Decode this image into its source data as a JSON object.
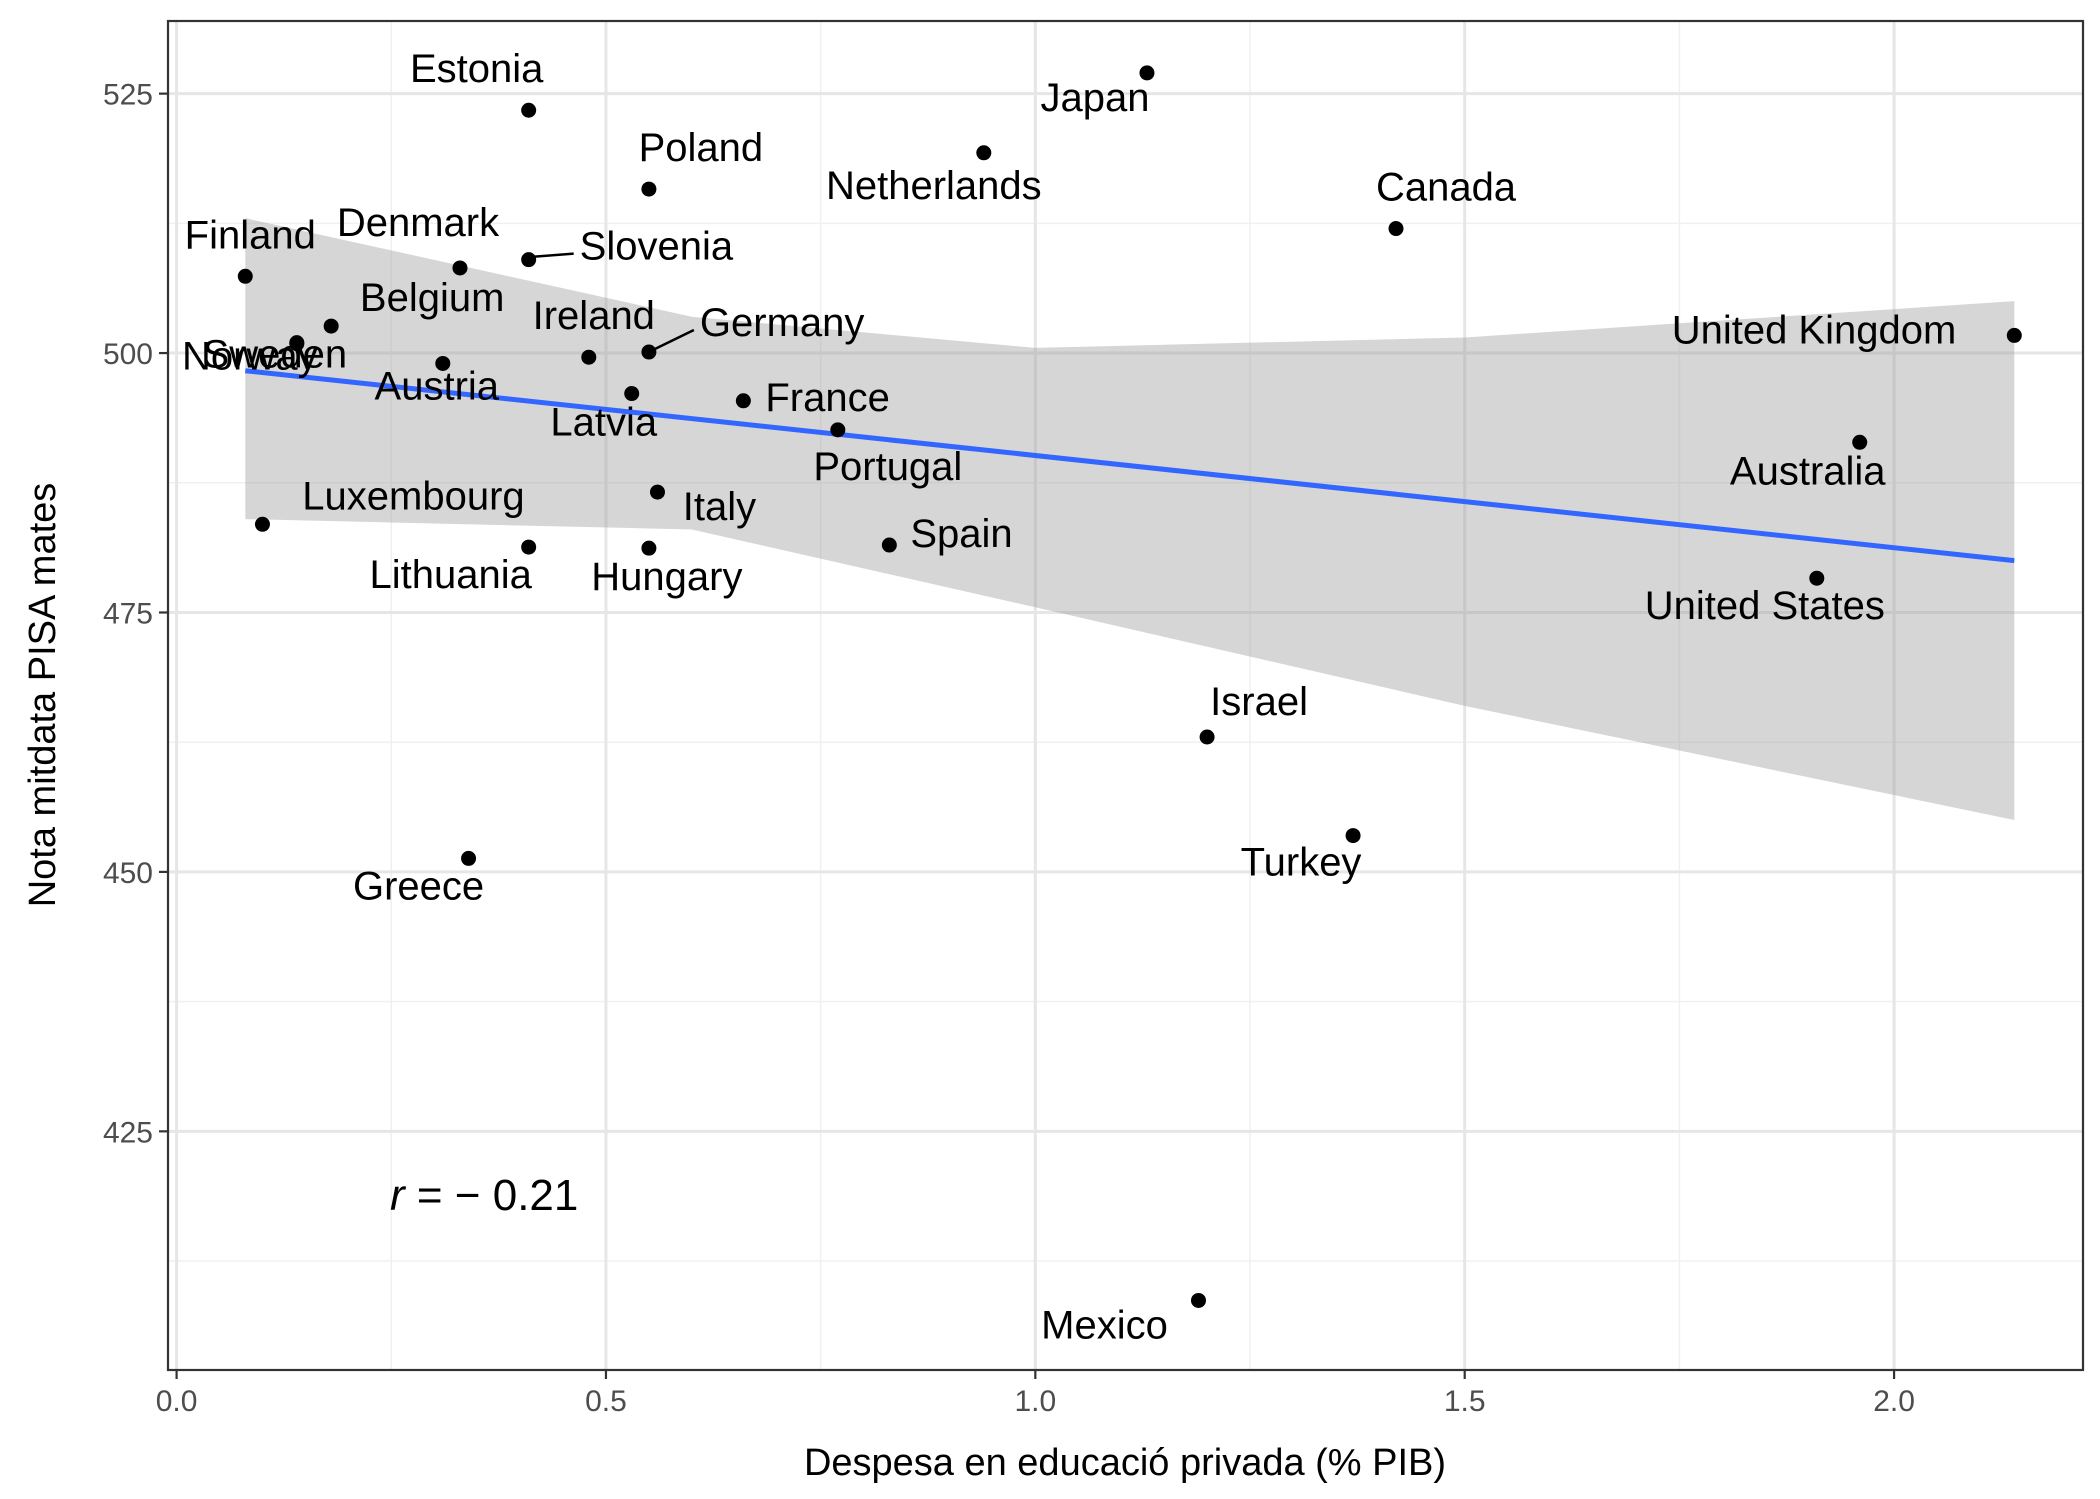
{
  "chart_data": {
    "type": "scatter",
    "xlabel": "Despesa en educació privada (% PIB)",
    "ylabel": "Nota mitdata PISA mates",
    "xlim": [
      -0.01,
      2.22
    ],
    "ylim": [
      402,
      532
    ],
    "x_ticks": [
      0.0,
      0.5,
      1.0,
      1.5,
      2.0
    ],
    "x_tick_labels": [
      "0.0",
      "0.5",
      "1.0",
      "1.5",
      "2.0"
    ],
    "y_ticks": [
      425,
      450,
      475,
      500,
      525
    ],
    "y_tick_labels": [
      "425",
      "450",
      "475",
      "500",
      "525"
    ],
    "grid": true,
    "annotation": {
      "r_symbol": "r",
      "text": " = − 0.21",
      "x": 0.25,
      "y": 419
    },
    "regression": {
      "x_start": 0.08,
      "y_start": 498.3,
      "x_end": 2.14,
      "y_end": 480.0,
      "ci_lower": [
        [
          0.08,
          484.0
        ],
        [
          0.6,
          483.0
        ],
        [
          1.0,
          475.5
        ],
        [
          1.5,
          466.0
        ],
        [
          2.14,
          455.0
        ]
      ],
      "ci_upper": [
        [
          0.08,
          513.0
        ],
        [
          0.6,
          503.5
        ],
        [
          1.0,
          500.5
        ],
        [
          1.5,
          501.5
        ],
        [
          2.14,
          505.0
        ]
      ],
      "color": "#3366FF",
      "ci_color": "#999999"
    },
    "series": [
      {
        "points": [
          {
            "label": "Estonia",
            "x": 0.41,
            "y": 523.4
          },
          {
            "label": "Japan",
            "x": 1.13,
            "y": 527.0
          },
          {
            "label": "Poland",
            "x": 0.55,
            "y": 515.8
          },
          {
            "label": "Netherlands",
            "x": 0.94,
            "y": 519.3
          },
          {
            "label": "Canada",
            "x": 1.42,
            "y": 512.0
          },
          {
            "label": "Finland",
            "x": 0.08,
            "y": 507.4
          },
          {
            "label": "Denmark",
            "x": 0.33,
            "y": 508.2
          },
          {
            "label": "Slovenia",
            "x": 0.41,
            "y": 509.0
          },
          {
            "label": "Sweden",
            "x": 0.14,
            "y": 501.0
          },
          {
            "label": "Belgium",
            "x": 0.18,
            "y": 502.6
          },
          {
            "label": "Ireland",
            "x": 0.48,
            "y": 499.6
          },
          {
            "label": "Germany",
            "x": 0.55,
            "y": 500.1
          },
          {
            "label": "United Kingdom",
            "x": 2.14,
            "y": 501.7
          },
          {
            "label": "Norway",
            "x": 0.14,
            "y": 500.9
          },
          {
            "label": "Austria",
            "x": 0.31,
            "y": 499.0
          },
          {
            "label": "Latvia",
            "x": 0.53,
            "y": 496.1
          },
          {
            "label": "France",
            "x": 0.66,
            "y": 495.4
          },
          {
            "label": "Portugal",
            "x": 0.77,
            "y": 492.6
          },
          {
            "label": "Australia",
            "x": 1.96,
            "y": 491.4
          },
          {
            "label": "Luxembourg",
            "x": 0.1,
            "y": 483.5
          },
          {
            "label": "Italy",
            "x": 0.56,
            "y": 486.6
          },
          {
            "label": "Spain",
            "x": 0.83,
            "y": 481.5
          },
          {
            "label": "Lithuania",
            "x": 0.41,
            "y": 481.3
          },
          {
            "label": "Hungary",
            "x": 0.55,
            "y": 481.2
          },
          {
            "label": "United States",
            "x": 1.91,
            "y": 478.3
          },
          {
            "label": "Israel",
            "x": 1.2,
            "y": 463.0
          },
          {
            "label": "Turkey",
            "x": 1.37,
            "y": 453.5
          },
          {
            "label": "Greece",
            "x": 0.34,
            "y": 451.3
          },
          {
            "label": "Mexico",
            "x": 1.19,
            "y": 408.7
          }
        ]
      }
    ]
  }
}
